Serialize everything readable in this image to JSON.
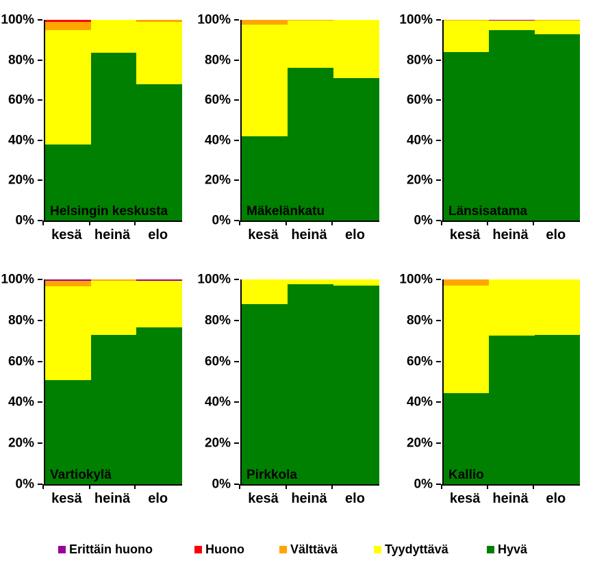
{
  "y_axis": {
    "ticks": [
      "100%",
      "80%",
      "60%",
      "40%",
      "20%",
      "0%"
    ]
  },
  "categories": [
    "kesä",
    "heinä",
    "elo"
  ],
  "legend": {
    "items": [
      {
        "label": "Erittäin huono",
        "color": "#990099"
      },
      {
        "label": "Huono",
        "color": "#FF0000"
      },
      {
        "label": "Välttävä",
        "color": "#FFA500"
      },
      {
        "label": "Tyydyttävä",
        "color": "#FFFF00"
      },
      {
        "label": "Hyvä",
        "color": "#008000"
      }
    ]
  },
  "colors": {
    "Erittäin huono": "#990099",
    "Huono": "#FF0000",
    "Välttävä": "#FFA500",
    "Tyydyttävä": "#FFFF00",
    "Hyvä": "#008000"
  },
  "chart_data": [
    {
      "type": "bar",
      "subtype": "stacked-100",
      "title": "Helsingin keskusta",
      "categories": [
        "kesä",
        "heinä",
        "elo"
      ],
      "ylabel": "",
      "xlabel": "",
      "ylim": [
        0,
        100
      ],
      "grid": false,
      "series": [
        {
          "name": "Hyvä",
          "values": [
            38,
            83.5,
            68
          ]
        },
        {
          "name": "Tyydyttävä",
          "values": [
            57,
            16.5,
            31
          ]
        },
        {
          "name": "Välttävä",
          "values": [
            4,
            0,
            1
          ]
        },
        {
          "name": "Huono",
          "values": [
            1,
            0,
            0
          ]
        },
        {
          "name": "Erittäin huono",
          "values": [
            0,
            0,
            0
          ]
        }
      ]
    },
    {
      "type": "bar",
      "subtype": "stacked-100",
      "title": "Mäkelänkatu",
      "categories": [
        "kesä",
        "heinä",
        "elo"
      ],
      "ylabel": "",
      "xlabel": "",
      "ylim": [
        0,
        100
      ],
      "grid": false,
      "series": [
        {
          "name": "Hyvä",
          "values": [
            42,
            76,
            71
          ]
        },
        {
          "name": "Tyydyttävä",
          "values": [
            55.5,
            23.5,
            29
          ]
        },
        {
          "name": "Välttävä",
          "values": [
            2.5,
            0.5,
            0
          ]
        },
        {
          "name": "Huono",
          "values": [
            0,
            0,
            0
          ]
        },
        {
          "name": "Erittäin huono",
          "values": [
            0,
            0,
            0
          ]
        }
      ]
    },
    {
      "type": "bar",
      "subtype": "stacked-100",
      "title": "Länsisatama",
      "categories": [
        "kesä",
        "heinä",
        "elo"
      ],
      "ylabel": "",
      "xlabel": "",
      "ylim": [
        0,
        100
      ],
      "grid": false,
      "series": [
        {
          "name": "Hyvä",
          "values": [
            84,
            95,
            93
          ]
        },
        {
          "name": "Tyydyttävä",
          "values": [
            15.5,
            4.5,
            6.5
          ]
        },
        {
          "name": "Välttävä",
          "values": [
            0.5,
            0,
            0.5
          ]
        },
        {
          "name": "Huono",
          "values": [
            0,
            0,
            0
          ]
        },
        {
          "name": "Erittäin huono",
          "values": [
            0,
            0.5,
            0
          ]
        }
      ]
    },
    {
      "type": "bar",
      "subtype": "stacked-100",
      "title": "Vartiokylä",
      "categories": [
        "kesä",
        "heinä",
        "elo"
      ],
      "ylabel": "",
      "xlabel": "",
      "ylim": [
        0,
        100
      ],
      "grid": false,
      "series": [
        {
          "name": "Hyvä",
          "values": [
            51,
            73,
            76.5
          ]
        },
        {
          "name": "Tyydyttävä",
          "values": [
            45.5,
            26.5,
            23
          ]
        },
        {
          "name": "Välttävä",
          "values": [
            3,
            0.5,
            0
          ]
        },
        {
          "name": "Huono",
          "values": [
            0,
            0,
            0
          ]
        },
        {
          "name": "Erittäin huono",
          "values": [
            0.5,
            0,
            0.5
          ]
        }
      ]
    },
    {
      "type": "bar",
      "subtype": "stacked-100",
      "title": "Pirkkola",
      "categories": [
        "kesä",
        "heinä",
        "elo"
      ],
      "ylabel": "",
      "xlabel": "",
      "ylim": [
        0,
        100
      ],
      "grid": false,
      "series": [
        {
          "name": "Hyvä",
          "values": [
            88,
            97.5,
            97
          ]
        },
        {
          "name": "Tyydyttävä",
          "values": [
            12,
            2.5,
            3
          ]
        },
        {
          "name": "Välttävä",
          "values": [
            0,
            0,
            0
          ]
        },
        {
          "name": "Huono",
          "values": [
            0,
            0,
            0
          ]
        },
        {
          "name": "Erittäin huono",
          "values": [
            0,
            0,
            0
          ]
        }
      ]
    },
    {
      "type": "bar",
      "subtype": "stacked-100",
      "title": "Kallio",
      "categories": [
        "kesä",
        "heinä",
        "elo"
      ],
      "ylabel": "",
      "xlabel": "",
      "ylim": [
        0,
        100
      ],
      "grid": false,
      "series": [
        {
          "name": "Hyvä",
          "values": [
            44.5,
            72.5,
            73
          ]
        },
        {
          "name": "Tyydyttävä",
          "values": [
            52.5,
            27.5,
            27
          ]
        },
        {
          "name": "Välttävä",
          "values": [
            3,
            0,
            0
          ]
        },
        {
          "name": "Huono",
          "values": [
            0,
            0,
            0
          ]
        },
        {
          "name": "Erittäin huono",
          "values": [
            0,
            0,
            0
          ]
        }
      ]
    }
  ]
}
